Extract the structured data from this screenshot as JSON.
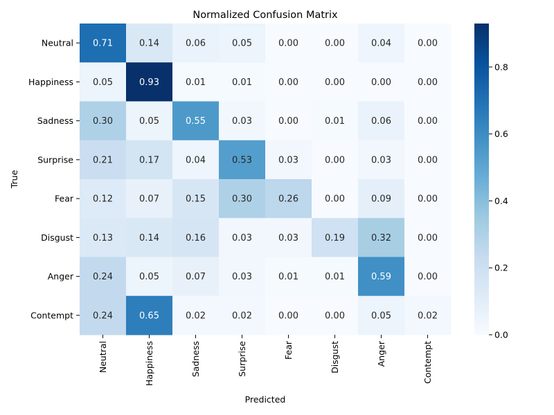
{
  "chart_data": {
    "type": "heatmap",
    "title": "Normalized Confusion Matrix",
    "xlabel": "Predicted",
    "ylabel": "True",
    "x_categories": [
      "Neutral",
      "Happiness",
      "Sadness",
      "Surprise",
      "Fear",
      "Disgust",
      "Anger",
      "Contempt"
    ],
    "y_categories": [
      "Neutral",
      "Happiness",
      "Sadness",
      "Surprise",
      "Fear",
      "Disgust",
      "Anger",
      "Contempt"
    ],
    "values": [
      [
        0.71,
        0.14,
        0.06,
        0.05,
        0.0,
        0.0,
        0.04,
        0.0
      ],
      [
        0.05,
        0.93,
        0.01,
        0.01,
        0.0,
        0.0,
        0.0,
        0.0
      ],
      [
        0.3,
        0.05,
        0.55,
        0.03,
        0.0,
        0.01,
        0.06,
        0.0
      ],
      [
        0.21,
        0.17,
        0.04,
        0.53,
        0.03,
        0.0,
        0.03,
        0.0
      ],
      [
        0.12,
        0.07,
        0.15,
        0.3,
        0.26,
        0.0,
        0.09,
        0.0
      ],
      [
        0.13,
        0.14,
        0.16,
        0.03,
        0.03,
        0.19,
        0.32,
        0.0
      ],
      [
        0.24,
        0.05,
        0.07,
        0.03,
        0.01,
        0.01,
        0.59,
        0.0
      ],
      [
        0.24,
        0.65,
        0.02,
        0.02,
        0.0,
        0.0,
        0.05,
        0.02
      ]
    ],
    "value_range": [
      0,
      0.93
    ],
    "colormap": "Blues",
    "colorbar_ticks": [
      "0.0",
      "0.2",
      "0.4",
      "0.6",
      "0.8"
    ],
    "grid": false
  }
}
